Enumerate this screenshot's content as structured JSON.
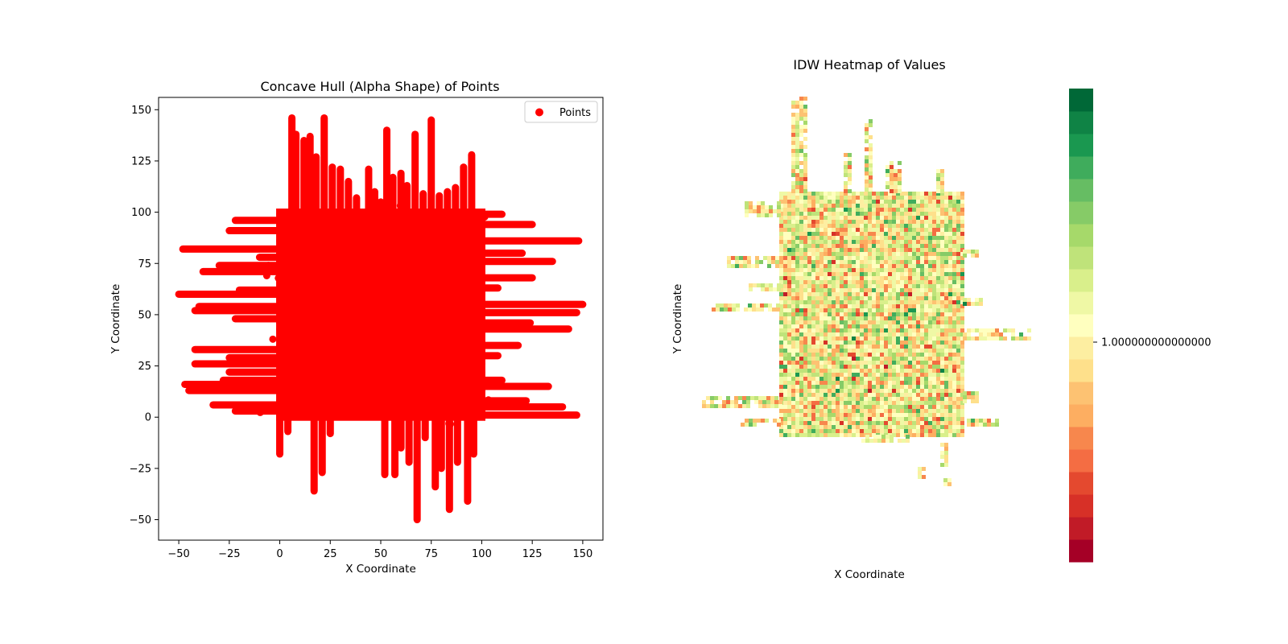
{
  "chart_data": [
    {
      "type": "scatter",
      "title": "Concave Hull (Alpha Shape) of Points",
      "xlabel": "X Coordinate",
      "ylabel": "Y Coordinate",
      "xlim": [
        -60,
        160
      ],
      "ylim": [
        -60,
        156
      ],
      "xticks": [
        -50,
        -25,
        0,
        25,
        50,
        75,
        100,
        125,
        150
      ],
      "xtick_labels": [
        "−50",
        "−25",
        "0",
        "25",
        "50",
        "75",
        "100",
        "125",
        "150"
      ],
      "yticks": [
        -50,
        -25,
        0,
        25,
        50,
        75,
        100,
        125,
        150
      ],
      "ytick_labels": [
        "−50",
        "−25",
        "0",
        "25",
        "50",
        "75",
        "100",
        "125",
        "150"
      ],
      "legend": {
        "position": "upper right",
        "entries": [
          "Points"
        ]
      },
      "grid": false,
      "series": [
        {
          "name": "Points",
          "color": "#ff0000",
          "marker": "circle",
          "core_region": {
            "x": [
              0,
              100
            ],
            "y": [
              0,
              100
            ]
          },
          "horizontal_streaks": [
            {
              "y": 96,
              "x": [
                -22,
                100
              ]
            },
            {
              "y": 91,
              "x": [
                -25,
                100
              ]
            },
            {
              "y": 82,
              "x": [
                -48,
                100
              ]
            },
            {
              "y": 78,
              "x": [
                -10,
                100
              ]
            },
            {
              "y": 74,
              "x": [
                -30,
                100
              ]
            },
            {
              "y": 71,
              "x": [
                -38,
                100
              ]
            },
            {
              "y": 62,
              "x": [
                -20,
                100
              ]
            },
            {
              "y": 60,
              "x": [
                -50,
                100
              ]
            },
            {
              "y": 54,
              "x": [
                -40,
                100
              ]
            },
            {
              "y": 52,
              "x": [
                -42,
                100
              ]
            },
            {
              "y": 48,
              "x": [
                -22,
                100
              ]
            },
            {
              "y": 33,
              "x": [
                -42,
                100
              ]
            },
            {
              "y": 29,
              "x": [
                -25,
                100
              ]
            },
            {
              "y": 26,
              "x": [
                -42,
                100
              ]
            },
            {
              "y": 22,
              "x": [
                -25,
                100
              ]
            },
            {
              "y": 18,
              "x": [
                -28,
                100
              ]
            },
            {
              "y": 16,
              "x": [
                -47,
                100
              ]
            },
            {
              "y": 13,
              "x": [
                -45,
                100
              ]
            },
            {
              "y": 6,
              "x": [
                -33,
                100
              ]
            },
            {
              "y": 3,
              "x": [
                -22,
                100
              ]
            },
            {
              "y": 99,
              "x": [
                0,
                110
              ]
            },
            {
              "y": 94,
              "x": [
                0,
                125
              ]
            },
            {
              "y": 86,
              "x": [
                0,
                148
              ]
            },
            {
              "y": 80,
              "x": [
                0,
                120
              ]
            },
            {
              "y": 76,
              "x": [
                0,
                135
              ]
            },
            {
              "y": 68,
              "x": [
                0,
                125
              ]
            },
            {
              "y": 63,
              "x": [
                0,
                108
              ]
            },
            {
              "y": 55,
              "x": [
                0,
                150
              ]
            },
            {
              "y": 51,
              "x": [
                0,
                147
              ]
            },
            {
              "y": 46,
              "x": [
                0,
                124
              ]
            },
            {
              "y": 43,
              "x": [
                0,
                143
              ]
            },
            {
              "y": 35,
              "x": [
                0,
                118
              ]
            },
            {
              "y": 30,
              "x": [
                0,
                108
              ]
            },
            {
              "y": 18,
              "x": [
                0,
                110
              ]
            },
            {
              "y": 15,
              "x": [
                0,
                133
              ]
            },
            {
              "y": 8,
              "x": [
                0,
                122
              ]
            },
            {
              "y": 5,
              "x": [
                0,
                140
              ]
            },
            {
              "y": 1,
              "x": [
                0,
                147
              ]
            }
          ],
          "vertical_streaks": [
            {
              "x": 6,
              "y": [
                100,
                146
              ]
            },
            {
              "x": 8,
              "y": [
                100,
                138
              ]
            },
            {
              "x": 12,
              "y": [
                100,
                135
              ]
            },
            {
              "x": 15,
              "y": [
                100,
                137
              ]
            },
            {
              "x": 18,
              "y": [
                100,
                127
              ]
            },
            {
              "x": 22,
              "y": [
                100,
                146
              ]
            },
            {
              "x": 26,
              "y": [
                100,
                122
              ]
            },
            {
              "x": 30,
              "y": [
                100,
                121
              ]
            },
            {
              "x": 34,
              "y": [
                100,
                115
              ]
            },
            {
              "x": 38,
              "y": [
                100,
                107
              ]
            },
            {
              "x": 44,
              "y": [
                100,
                121
              ]
            },
            {
              "x": 47,
              "y": [
                100,
                110
              ]
            },
            {
              "x": 50,
              "y": [
                100,
                105
              ]
            },
            {
              "x": 53,
              "y": [
                100,
                140
              ]
            },
            {
              "x": 56,
              "y": [
                100,
                117
              ]
            },
            {
              "x": 60,
              "y": [
                100,
                119
              ]
            },
            {
              "x": 63,
              "y": [
                100,
                113
              ]
            },
            {
              "x": 67,
              "y": [
                100,
                138
              ]
            },
            {
              "x": 71,
              "y": [
                100,
                109
              ]
            },
            {
              "x": 75,
              "y": [
                100,
                145
              ]
            },
            {
              "x": 79,
              "y": [
                100,
                108
              ]
            },
            {
              "x": 83,
              "y": [
                100,
                110
              ]
            },
            {
              "x": 87,
              "y": [
                100,
                112
              ]
            },
            {
              "x": 91,
              "y": [
                100,
                122
              ]
            },
            {
              "x": 95,
              "y": [
                100,
                128
              ]
            },
            {
              "x": 0,
              "y": [
                -18,
                0
              ]
            },
            {
              "x": 4,
              "y": [
                -7,
                0
              ]
            },
            {
              "x": 17,
              "y": [
                -36,
                0
              ]
            },
            {
              "x": 21,
              "y": [
                -27,
                0
              ]
            },
            {
              "x": 25,
              "y": [
                -8,
                0
              ]
            },
            {
              "x": 52,
              "y": [
                -28,
                0
              ]
            },
            {
              "x": 57,
              "y": [
                -28,
                0
              ]
            },
            {
              "x": 60,
              "y": [
                -15,
                0
              ]
            },
            {
              "x": 64,
              "y": [
                -22,
                0
              ]
            },
            {
              "x": 68,
              "y": [
                -50,
                0
              ]
            },
            {
              "x": 72,
              "y": [
                -10,
                0
              ]
            },
            {
              "x": 77,
              "y": [
                -34,
                0
              ]
            },
            {
              "x": 80,
              "y": [
                -25,
                0
              ]
            },
            {
              "x": 84,
              "y": [
                -45,
                0
              ]
            },
            {
              "x": 88,
              "y": [
                -22,
                0
              ]
            },
            {
              "x": 93,
              "y": [
                -41,
                0
              ]
            },
            {
              "x": 96,
              "y": [
                -18,
                0
              ]
            }
          ]
        }
      ]
    },
    {
      "type": "heatmap",
      "title": "IDW Heatmap of Values",
      "xlabel": "X Coordinate",
      "ylabel": "Y Coordinate",
      "colormap": "RdYlGn",
      "colorbar": {
        "tick_labels": [
          "1.000000000000000"
        ],
        "colors": [
          "#a50026",
          "#c11b27",
          "#d73027",
          "#e4492f",
          "#f46d43",
          "#f7874d",
          "#fdae61",
          "#fdc272",
          "#fee08b",
          "#fdeea1",
          "#ffffbf",
          "#eff8a5",
          "#d9ef8b",
          "#bfe37a",
          "#a6d96a",
          "#86cb67",
          "#66bd63",
          "#3fac5c",
          "#1a9850",
          "#0f8345",
          "#006837"
        ]
      },
      "value_range_note": "",
      "grid": false
    }
  ]
}
